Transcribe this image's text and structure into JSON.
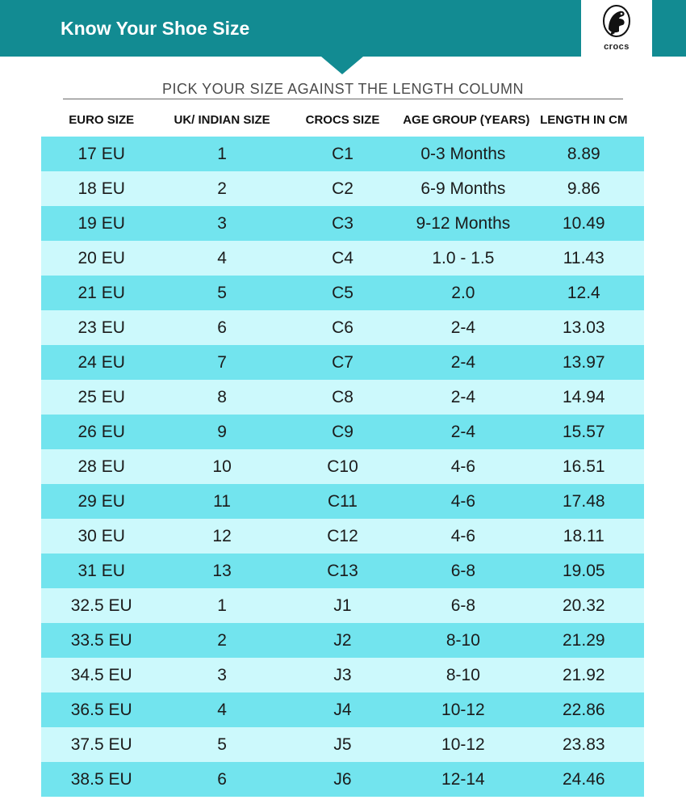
{
  "header": {
    "title": "Know Your Shoe Size",
    "brand": "crocs",
    "brand_icon": "crocodile-mascot-icon",
    "color": "#128b92"
  },
  "subtitle": "PICK YOUR SIZE AGAINST THE LENGTH COLUMN",
  "columns": [
    "EURO SIZE",
    "UK/ INDIAN SIZE",
    "CROCS SIZE",
    "AGE GROUP (YEARS)",
    "LENGTH IN CM"
  ],
  "row_colors": {
    "odd": "#72e4ee",
    "even": "#ccf9fc"
  },
  "rows": [
    [
      "17 EU",
      "1",
      "C1",
      "0-3 Months",
      "8.89"
    ],
    [
      "18 EU",
      "2",
      "C2",
      "6-9 Months",
      "9.86"
    ],
    [
      "19 EU",
      "3",
      "C3",
      "9-12 Months",
      "10.49"
    ],
    [
      "20 EU",
      "4",
      "C4",
      "1.0 - 1.5",
      "11.43"
    ],
    [
      "21 EU",
      "5",
      "C5",
      "2.0",
      "12.4"
    ],
    [
      "23 EU",
      "6",
      "C6",
      "2-4",
      "13.03"
    ],
    [
      "24 EU",
      "7",
      "C7",
      "2-4",
      "13.97"
    ],
    [
      "25 EU",
      "8",
      "C8",
      "2-4",
      "14.94"
    ],
    [
      "26 EU",
      "9",
      "C9",
      "2-4",
      "15.57"
    ],
    [
      "28 EU",
      "10",
      "C10",
      "4-6",
      "16.51"
    ],
    [
      "29 EU",
      "11",
      "C11",
      "4-6",
      "17.48"
    ],
    [
      "30 EU",
      "12",
      "C12",
      "4-6",
      "18.11"
    ],
    [
      "31 EU",
      "13",
      "C13",
      "6-8",
      "19.05"
    ],
    [
      "32.5 EU",
      "1",
      "J1",
      "6-8",
      "20.32"
    ],
    [
      "33.5 EU",
      "2",
      "J2",
      "8-10",
      "21.29"
    ],
    [
      "34.5 EU",
      "3",
      "J3",
      "8-10",
      "21.92"
    ],
    [
      "36.5 EU",
      "4",
      "J4",
      "10-12",
      "22.86"
    ],
    [
      "37.5 EU",
      "5",
      "J5",
      "10-12",
      "23.83"
    ],
    [
      "38.5 EU",
      "6",
      "J6",
      "12-14",
      "24.46"
    ]
  ]
}
